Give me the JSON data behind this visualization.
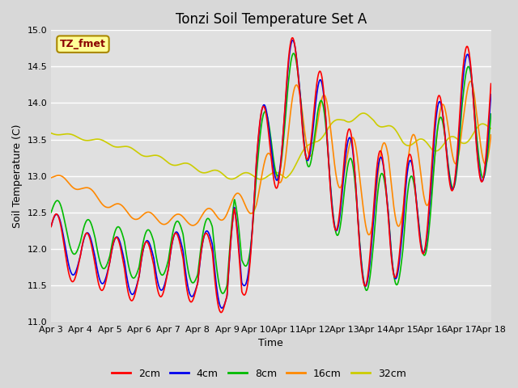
{
  "title": "Tonzi Soil Temperature Set A",
  "xlabel": "Time",
  "ylabel": "Soil Temperature (C)",
  "ylim": [
    11.0,
    15.0
  ],
  "yticks": [
    11.0,
    11.5,
    12.0,
    12.5,
    13.0,
    13.5,
    14.0,
    14.5,
    15.0
  ],
  "xtick_labels": [
    "Apr 3",
    "Apr 4",
    "Apr 5",
    "Apr 6",
    "Apr 7",
    "Apr 8",
    "Apr 9",
    "Apr 10",
    "Apr 11",
    "Apr 12",
    "Apr 13",
    "Apr 14",
    "Apr 15",
    "Apr 16",
    "Apr 17",
    "Apr 18"
  ],
  "legend_label": "TZ_fmet",
  "series_labels": [
    "2cm",
    "4cm",
    "8cm",
    "16cm",
    "32cm"
  ],
  "series_colors": [
    "#ff0000",
    "#0000ee",
    "#00bb00",
    "#ff8800",
    "#cccc00"
  ],
  "fig_facecolor": "#d8d8d8",
  "plot_facecolor": "#e0e0e0",
  "title_fontsize": 12,
  "axis_fontsize": 9,
  "tick_fontsize": 8,
  "legend_box_color": "#ffff99",
  "legend_box_edge": "#aa8800"
}
